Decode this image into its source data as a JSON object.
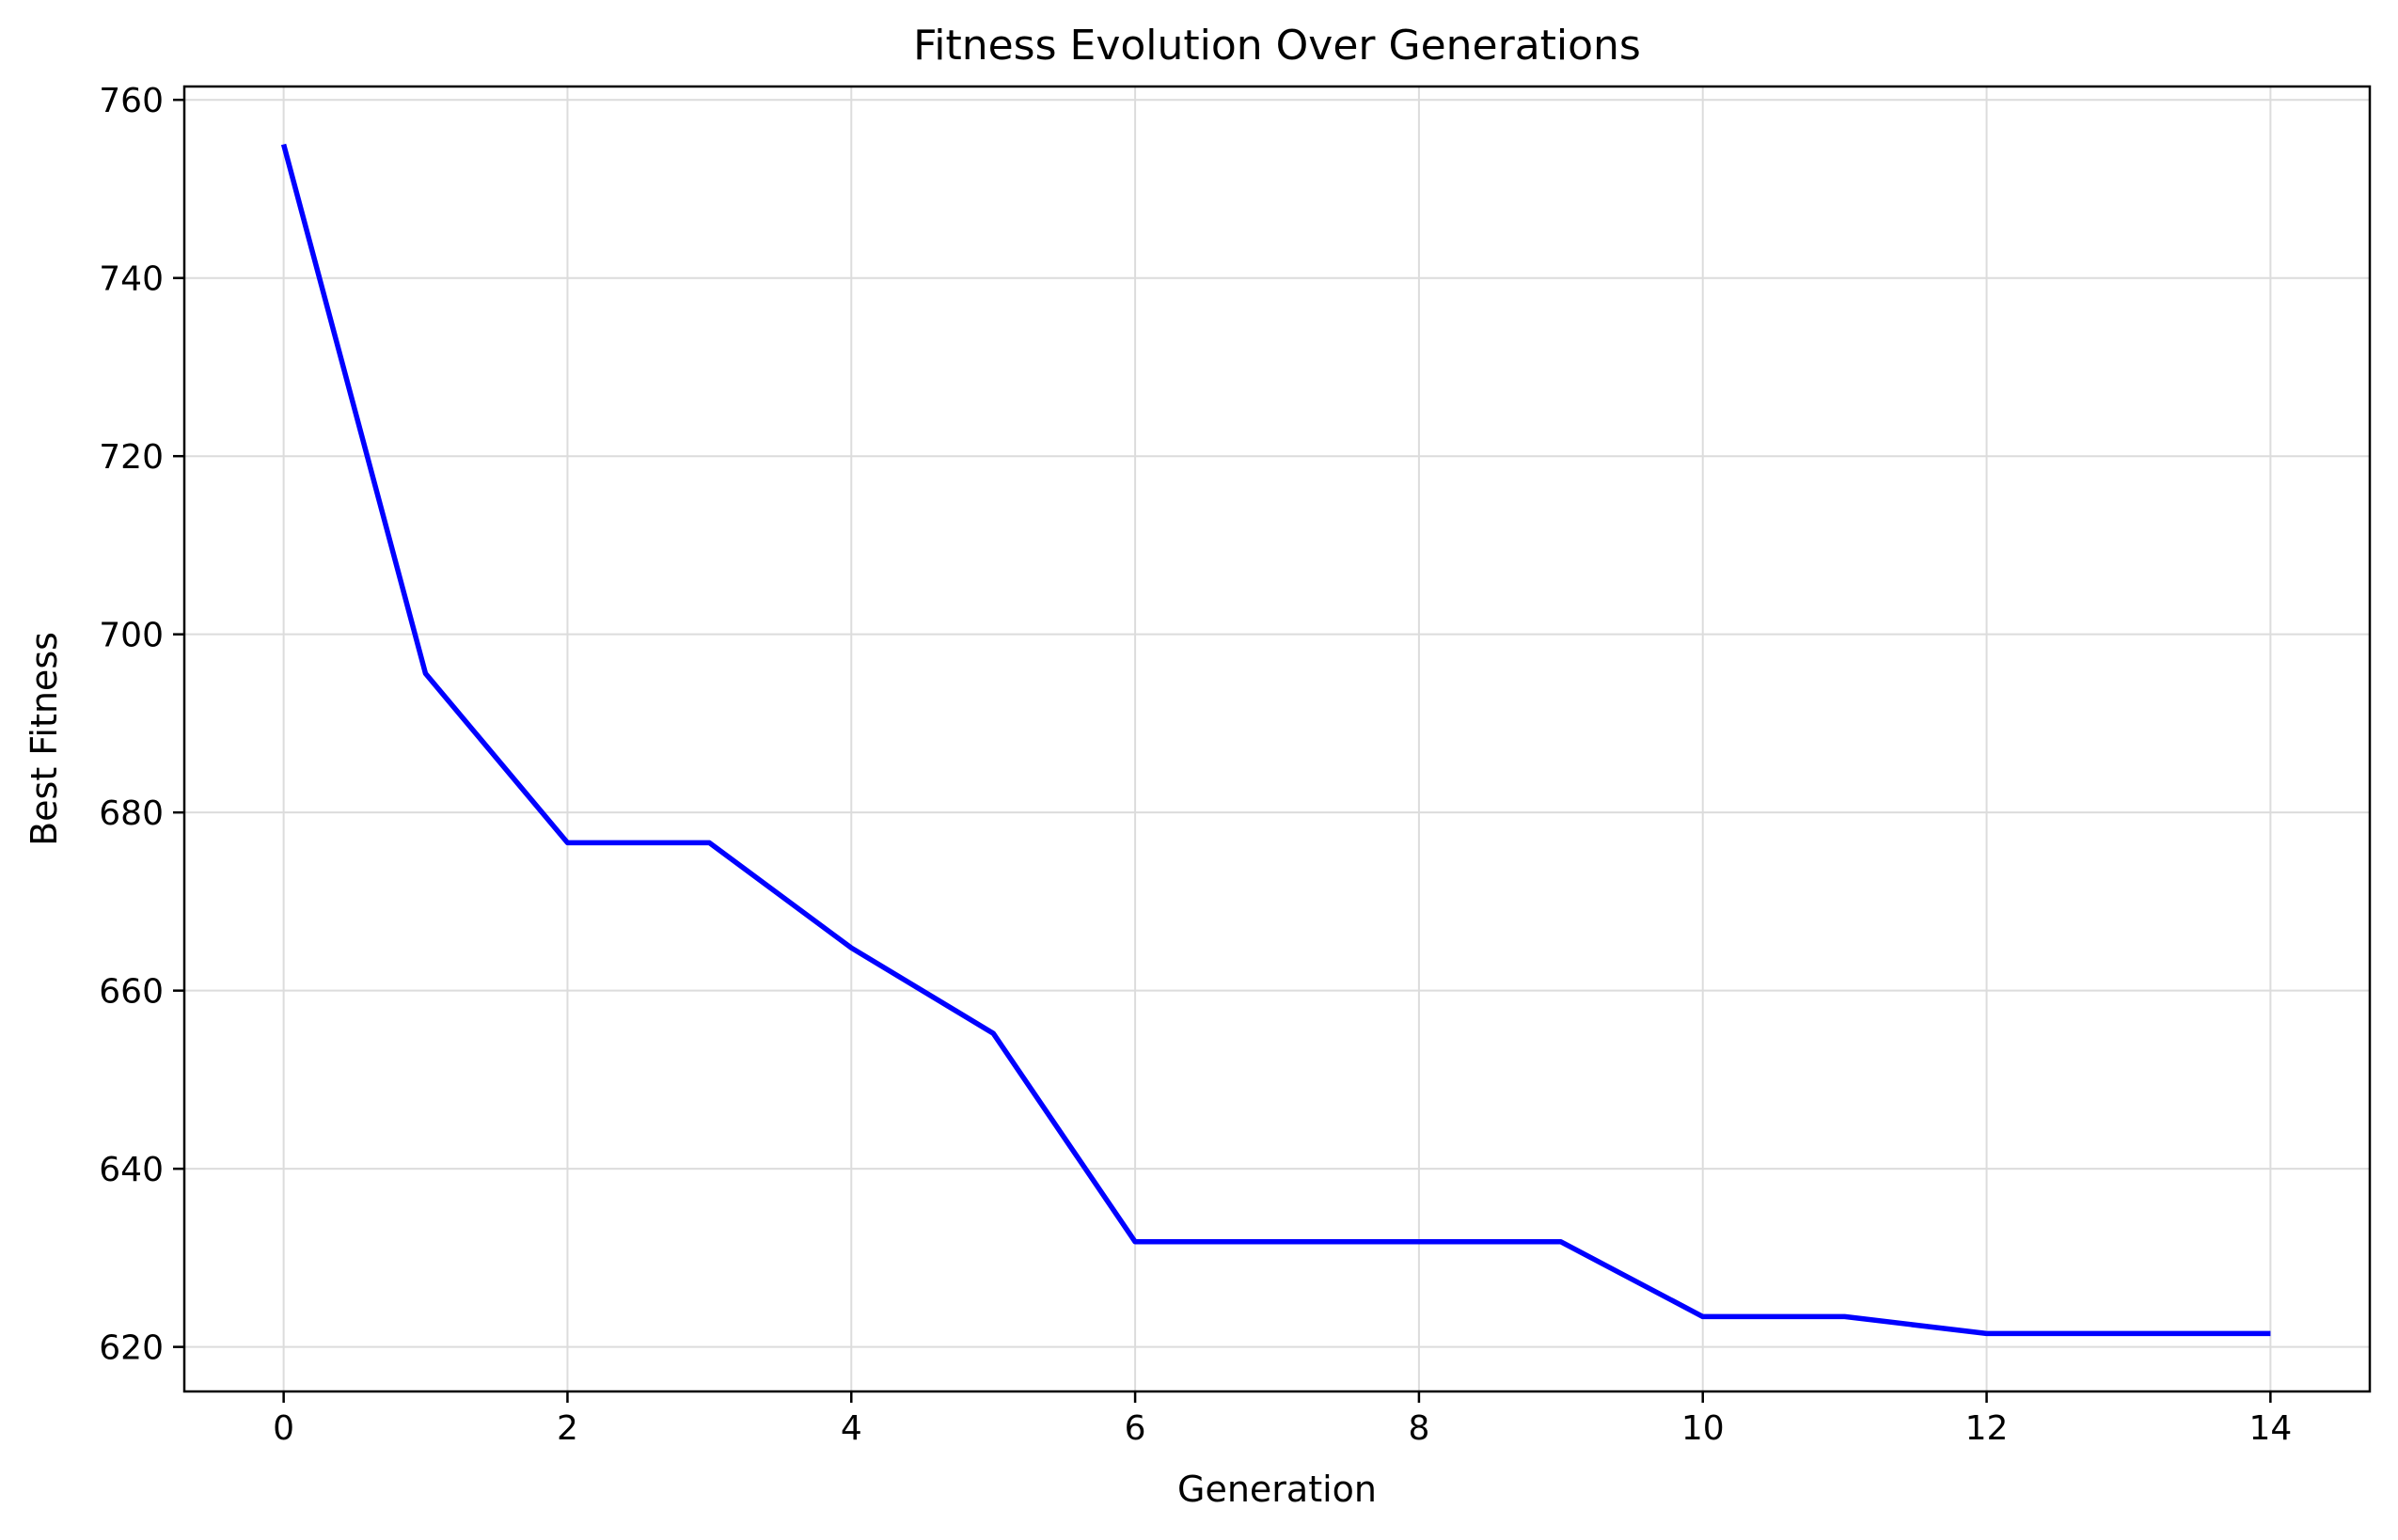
{
  "chart_data": {
    "type": "line",
    "title": "Fitness Evolution Over Generations",
    "xlabel": "Generation",
    "ylabel": "Best Fitness",
    "xlim": [
      -0.7,
      14.7
    ],
    "ylim": [
      615,
      761.5
    ],
    "xticks": [
      0,
      2,
      4,
      6,
      8,
      10,
      12,
      14
    ],
    "yticks": [
      620,
      640,
      660,
      680,
      700,
      720,
      740,
      760
    ],
    "grid": true,
    "legend": "none",
    "series": [
      {
        "color": "#0000ff",
        "x": [
          0,
          1,
          2,
          3,
          4,
          5,
          6,
          7,
          8,
          9,
          10,
          11,
          12,
          13,
          14
        ],
        "y": [
          755.0,
          695.6,
          676.6,
          676.6,
          664.8,
          655.2,
          631.8,
          631.8,
          631.8,
          631.8,
          623.4,
          623.4,
          621.5,
          621.5,
          621.5
        ]
      }
    ]
  }
}
